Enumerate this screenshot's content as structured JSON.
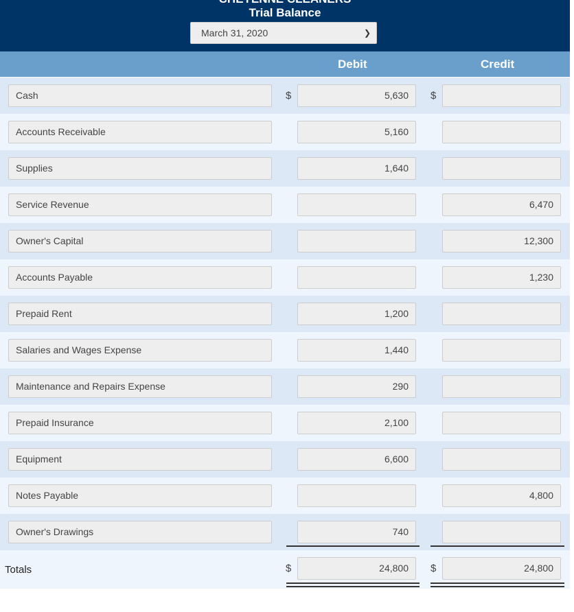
{
  "header": {
    "company": "CHEYENNE CLEANERS",
    "title": "Trial Balance",
    "date_select": "March 31, 2020"
  },
  "columns": {
    "debit": "Debit",
    "credit": "Credit"
  },
  "currency": "$",
  "rows": [
    {
      "account": "Cash",
      "debit": "5,630",
      "credit": ""
    },
    {
      "account": "Accounts Receivable",
      "debit": "5,160",
      "credit": ""
    },
    {
      "account": "Supplies",
      "debit": "1,640",
      "credit": ""
    },
    {
      "account": "Service Revenue",
      "debit": "",
      "credit": "6,470"
    },
    {
      "account": "Owner's Capital",
      "debit": "",
      "credit": "12,300"
    },
    {
      "account": "Accounts Payable",
      "debit": "",
      "credit": "1,230"
    },
    {
      "account": "Prepaid Rent",
      "debit": "1,200",
      "credit": ""
    },
    {
      "account": "Salaries and Wages Expense",
      "debit": "1,440",
      "credit": ""
    },
    {
      "account": "Maintenance and Repairs Expense",
      "debit": "290",
      "credit": ""
    },
    {
      "account": "Prepaid Insurance",
      "debit": "2,100",
      "credit": ""
    },
    {
      "account": "Equipment",
      "debit": "6,600",
      "credit": ""
    },
    {
      "account": "Notes Payable",
      "debit": "",
      "credit": "4,800"
    },
    {
      "account": "Owner's Drawings",
      "debit": "740",
      "credit": ""
    }
  ],
  "totals": {
    "label": "Totals",
    "debit": "24,800",
    "credit": "24,800"
  }
}
